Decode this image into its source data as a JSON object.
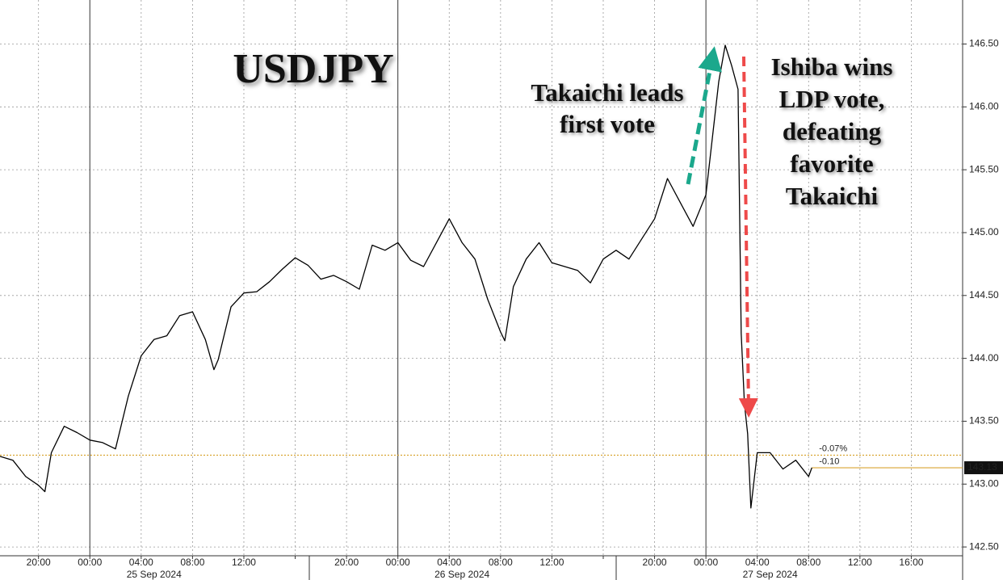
{
  "chart_data": {
    "type": "line",
    "title": "USDJPY",
    "x": [
      "2024-09-24T17:00",
      "2024-09-24T18:00",
      "2024-09-24T19:00",
      "2024-09-24T20:00",
      "2024-09-24T20:30",
      "2024-09-24T21:00",
      "2024-09-24T22:00",
      "2024-09-24T23:00",
      "2024-09-25T00:00",
      "2024-09-25T01:00",
      "2024-09-25T02:00",
      "2024-09-25T03:00",
      "2024-09-25T04:00",
      "2024-09-25T05:00",
      "2024-09-25T06:00",
      "2024-09-25T07:00",
      "2024-09-25T08:00",
      "2024-09-25T09:00",
      "2024-09-25T09:40",
      "2024-09-25T10:00",
      "2024-09-25T11:00",
      "2024-09-25T12:00",
      "2024-09-25T13:00",
      "2024-09-25T14:00",
      "2024-09-25T15:00",
      "2024-09-25T16:00",
      "2024-09-25T17:00",
      "2024-09-25T18:00",
      "2024-09-25T19:00",
      "2024-09-25T20:00",
      "2024-09-25T21:00",
      "2024-09-25T22:00",
      "2024-09-25T23:00",
      "2024-09-26T00:00",
      "2024-09-26T01:00",
      "2024-09-26T02:00",
      "2024-09-26T03:00",
      "2024-09-26T04:00",
      "2024-09-26T05:00",
      "2024-09-26T06:00",
      "2024-09-26T07:00",
      "2024-09-26T08:00",
      "2024-09-26T08:20",
      "2024-09-26T09:00",
      "2024-09-26T10:00",
      "2024-09-26T11:00",
      "2024-09-26T12:00",
      "2024-09-26T13:00",
      "2024-09-26T14:00",
      "2024-09-26T15:00",
      "2024-09-26T16:00",
      "2024-09-26T17:00",
      "2024-09-26T18:00",
      "2024-09-26T19:00",
      "2024-09-26T20:00",
      "2024-09-26T21:00",
      "2024-09-26T22:00",
      "2024-09-26T23:00",
      "2024-09-27T00:00",
      "2024-09-27T01:00",
      "2024-09-27T01:30",
      "2024-09-27T02:00",
      "2024-09-27T02:30",
      "2024-09-27T02:45",
      "2024-09-27T03:00",
      "2024-09-27T03:15",
      "2024-09-27T03:30",
      "2024-09-27T04:00",
      "2024-09-27T05:00",
      "2024-09-27T06:00",
      "2024-09-27T07:00",
      "2024-09-27T08:00",
      "2024-09-27T08:15"
    ],
    "values": [
      143.22,
      143.19,
      143.06,
      142.99,
      142.94,
      143.25,
      143.46,
      143.41,
      143.35,
      143.33,
      143.28,
      143.7,
      144.02,
      144.15,
      144.18,
      144.34,
      144.37,
      144.15,
      143.91,
      143.99,
      144.41,
      144.52,
      144.53,
      144.61,
      144.71,
      144.8,
      144.74,
      144.63,
      144.66,
      144.61,
      144.55,
      144.9,
      144.86,
      144.92,
      144.78,
      144.73,
      144.92,
      145.11,
      144.92,
      144.79,
      144.47,
      144.21,
      144.14,
      144.57,
      144.79,
      144.92,
      144.76,
      144.73,
      144.7,
      144.6,
      144.79,
      144.86,
      144.79,
      144.95,
      145.11,
      145.43,
      145.24,
      145.05,
      145.3,
      146.2,
      146.49,
      146.33,
      146.14,
      144.2,
      143.64,
      143.4,
      142.81,
      143.25,
      143.25,
      143.12,
      143.19,
      143.06,
      143.13
    ],
    "color": "#000000",
    "xlim": [
      "2024-09-24T17:00",
      "2024-09-27T20:00"
    ],
    "xticks": [
      {
        "value": "2024-09-24T20:00",
        "label": "20:00"
      },
      {
        "value": "2024-09-25T00:00",
        "label": "00:00"
      },
      {
        "value": "2024-09-25T04:00",
        "label": "04:00"
      },
      {
        "value": "2024-09-25T08:00",
        "label": "08:00"
      },
      {
        "value": "2024-09-25T12:00",
        "label": "12:00"
      },
      {
        "value": "2024-09-25T16:00",
        "label": null
      },
      {
        "value": "2024-09-25T20:00",
        "label": "20:00"
      },
      {
        "value": "2024-09-26T00:00",
        "label": "00:00"
      },
      {
        "value": "2024-09-26T04:00",
        "label": "04:00"
      },
      {
        "value": "2024-09-26T08:00",
        "label": "08:00"
      },
      {
        "value": "2024-09-26T12:00",
        "label": "12:00"
      },
      {
        "value": "2024-09-26T16:00",
        "label": null
      },
      {
        "value": "2024-09-26T20:00",
        "label": "20:00"
      },
      {
        "value": "2024-09-27T00:00",
        "label": "00:00"
      },
      {
        "value": "2024-09-27T04:00",
        "label": "04:00"
      },
      {
        "value": "2024-09-27T08:00",
        "label": "08:00"
      },
      {
        "value": "2024-09-27T12:00",
        "label": "12:00"
      },
      {
        "value": "2024-09-27T16:00",
        "label": "16:00"
      }
    ],
    "date_labels": [
      {
        "value": "2024-09-25T05:00",
        "label": "25 Sep 2024"
      },
      {
        "value": "2024-09-26T05:00",
        "label": "26 Sep 2024"
      },
      {
        "value": "2024-09-27T05:00",
        "label": "27 Sep 2024"
      }
    ],
    "ylim": [
      142.43,
      146.85
    ],
    "yticks": [
      {
        "value": 142.5,
        "label": "142.50"
      },
      {
        "value": 143,
        "label": "143.00"
      },
      {
        "value": 143.5,
        "label": "143.50"
      },
      {
        "value": 144,
        "label": "144.00"
      },
      {
        "value": 144.5,
        "label": "144.50"
      },
      {
        "value": 145,
        "label": "145.00"
      },
      {
        "value": 145.5,
        "label": "145.50"
      },
      {
        "value": 146,
        "label": "146.00"
      },
      {
        "value": 146.5,
        "label": "146.50"
      }
    ],
    "grid": true,
    "reference_line": {
      "value": 143.23,
      "color": "#d9a531",
      "labels": [
        "-0.07%",
        "-0.10"
      ]
    },
    "last_value": {
      "value": 143.13,
      "color": "#d9a531"
    },
    "annotations": [
      {
        "lines": [
          "Takaichi leads",
          "first vote"
        ],
        "arrow_color": "#1ba88c"
      },
      {
        "lines": [
          "Ishiba wins",
          "LDP vote,",
          "defeating",
          "favorite",
          "Takaichi"
        ],
        "arrow_color": "#ee4a4a"
      }
    ]
  }
}
